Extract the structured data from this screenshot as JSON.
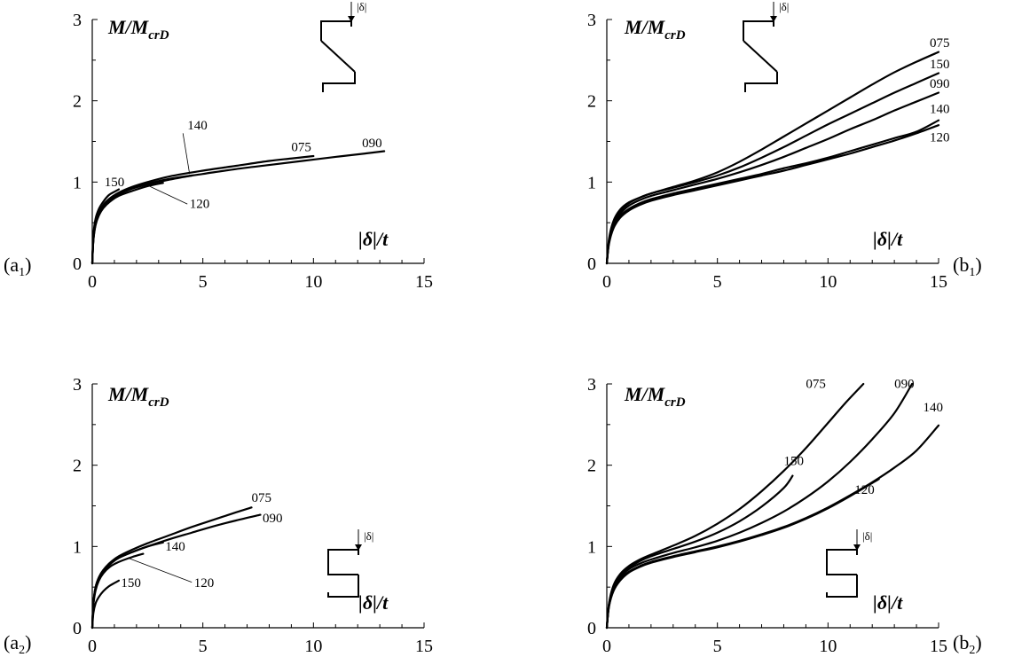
{
  "chart_data": [
    {
      "type": "line",
      "panel": "a1",
      "panel_label": {
        "main": "(a",
        "sub": "1",
        "close": ")"
      },
      "ylabel": {
        "main": "M/M",
        "sub": "crD"
      },
      "xlabel": "|δ|/t",
      "section_icon": "z-section-icon",
      "delta_label": "|δ|",
      "xlim": [
        0,
        15
      ],
      "ylim": [
        0,
        3
      ],
      "xticks": [
        "0",
        "5",
        "10",
        "15"
      ],
      "yticks": [
        "0",
        "1",
        "2",
        "3"
      ],
      "series": [
        {
          "name": "075",
          "x": [
            0,
            0.05,
            0.15,
            0.3,
            0.5,
            0.8,
            1.2,
            1.8,
            2.5,
            3.5,
            5,
            6.5,
            8,
            9,
            10
          ],
          "y": [
            0,
            0.3,
            0.5,
            0.62,
            0.72,
            0.8,
            0.87,
            0.94,
            1.0,
            1.07,
            1.14,
            1.2,
            1.26,
            1.29,
            1.32
          ]
        },
        {
          "name": "090",
          "x": [
            0,
            0.05,
            0.15,
            0.3,
            0.5,
            0.8,
            1.2,
            1.8,
            2.5,
            3.5,
            5,
            6.5,
            8,
            9.5,
            11,
            12.3,
            13.2
          ],
          "y": [
            0,
            0.29,
            0.48,
            0.6,
            0.7,
            0.78,
            0.85,
            0.92,
            0.98,
            1.04,
            1.1,
            1.16,
            1.21,
            1.26,
            1.31,
            1.35,
            1.38
          ]
        },
        {
          "name": "140",
          "x": [
            0,
            0.05,
            0.15,
            0.3,
            0.5,
            0.8,
            1.2,
            1.8,
            2.5,
            3.5,
            4.5
          ],
          "y": [
            0,
            0.3,
            0.5,
            0.62,
            0.71,
            0.79,
            0.86,
            0.92,
            0.97,
            1.03,
            1.08
          ]
        },
        {
          "name": "120",
          "x": [
            0,
            0.05,
            0.15,
            0.3,
            0.5,
            0.8,
            1.2,
            1.8,
            2.5,
            3.2
          ],
          "y": [
            0,
            0.28,
            0.47,
            0.59,
            0.68,
            0.76,
            0.83,
            0.89,
            0.95,
            0.99
          ]
        },
        {
          "name": "150",
          "x": [
            0,
            0.05,
            0.15,
            0.3,
            0.5,
            0.75,
            1.0,
            1.2
          ],
          "y": [
            0,
            0.35,
            0.55,
            0.67,
            0.76,
            0.84,
            0.88,
            0.91
          ]
        }
      ],
      "labels": [
        {
          "text": "150",
          "x": 0.55,
          "y": 0.95
        },
        {
          "text": "140",
          "x": 4.3,
          "y": 1.65
        },
        {
          "text": "120",
          "x": 4.4,
          "y": 0.68
        },
        {
          "text": "075",
          "x": 9.0,
          "y": 1.38
        },
        {
          "text": "090",
          "x": 12.2,
          "y": 1.43
        }
      ]
    },
    {
      "type": "line",
      "panel": "b1",
      "panel_label": {
        "main": "(b",
        "sub": "1",
        "close": ")"
      },
      "ylabel": {
        "main": "M/M",
        "sub": "crD"
      },
      "xlabel": "|δ|/t",
      "section_icon": "z-section-icon",
      "delta_label": "|δ|",
      "xlim": [
        0,
        15
      ],
      "ylim": [
        0,
        3
      ],
      "xticks": [
        "0",
        "5",
        "10",
        "15"
      ],
      "yticks": [
        "0",
        "1",
        "2",
        "3"
      ],
      "series": [
        {
          "name": "075",
          "x": [
            0,
            0.1,
            0.3,
            0.6,
            1,
            1.5,
            2,
            3,
            4,
            5,
            6,
            7,
            8,
            9,
            10,
            11,
            12,
            13,
            14,
            15
          ],
          "y": [
            0,
            0.28,
            0.5,
            0.64,
            0.74,
            0.81,
            0.86,
            0.94,
            1.02,
            1.12,
            1.25,
            1.4,
            1.56,
            1.72,
            1.88,
            2.04,
            2.2,
            2.35,
            2.48,
            2.6
          ]
        },
        {
          "name": "150",
          "x": [
            0,
            0.1,
            0.3,
            0.6,
            1,
            1.5,
            2,
            3,
            4,
            5,
            6,
            7,
            8,
            9,
            10,
            11,
            12,
            13,
            14,
            15
          ],
          "y": [
            0,
            0.3,
            0.52,
            0.66,
            0.75,
            0.81,
            0.86,
            0.93,
            1.0,
            1.08,
            1.18,
            1.3,
            1.43,
            1.57,
            1.71,
            1.84,
            1.97,
            2.1,
            2.22,
            2.34
          ]
        },
        {
          "name": "090",
          "x": [
            0,
            0.1,
            0.3,
            0.6,
            1,
            1.5,
            2,
            3,
            4,
            5,
            6,
            7,
            8,
            9,
            10,
            11,
            12,
            13,
            14,
            15
          ],
          "y": [
            0,
            0.26,
            0.47,
            0.61,
            0.71,
            0.78,
            0.83,
            0.9,
            0.97,
            1.04,
            1.12,
            1.21,
            1.31,
            1.42,
            1.53,
            1.65,
            1.76,
            1.88,
            1.99,
            2.1
          ]
        },
        {
          "name": "140",
          "x": [
            0,
            0.1,
            0.3,
            0.6,
            1,
            1.5,
            2,
            3,
            4,
            5,
            6,
            7,
            8,
            9,
            10,
            11,
            12,
            13,
            14,
            15
          ],
          "y": [
            0,
            0.26,
            0.45,
            0.58,
            0.67,
            0.74,
            0.79,
            0.86,
            0.92,
            0.98,
            1.04,
            1.1,
            1.17,
            1.23,
            1.3,
            1.38,
            1.46,
            1.54,
            1.62,
            1.76
          ]
        },
        {
          "name": "120",
          "x": [
            0,
            0.1,
            0.3,
            0.6,
            1,
            1.5,
            2,
            3,
            4,
            5,
            6,
            7,
            8,
            9,
            10,
            11,
            12,
            13,
            14,
            15
          ],
          "y": [
            0,
            0.24,
            0.43,
            0.56,
            0.65,
            0.72,
            0.77,
            0.84,
            0.9,
            0.96,
            1.02,
            1.08,
            1.14,
            1.21,
            1.28,
            1.35,
            1.43,
            1.51,
            1.6,
            1.7
          ]
        }
      ],
      "labels": [
        {
          "text": "075",
          "x": 14.6,
          "y": 2.66
        },
        {
          "text": "150",
          "x": 14.6,
          "y": 2.4
        },
        {
          "text": "090",
          "x": 14.6,
          "y": 2.16
        },
        {
          "text": "140",
          "x": 14.6,
          "y": 1.85
        },
        {
          "text": "120",
          "x": 14.6,
          "y": 1.5
        }
      ]
    },
    {
      "type": "line",
      "panel": "a2",
      "panel_label": {
        "main": "(a",
        "sub": "2",
        "close": ")"
      },
      "ylabel": {
        "main": "M/M",
        "sub": "crD"
      },
      "xlabel": "|δ|/t",
      "section_icon": "c-section-icon",
      "delta_label": "|δ|",
      "xlim": [
        0,
        15
      ],
      "ylim": [
        0,
        3
      ],
      "xticks": [
        "0",
        "5",
        "10",
        "15"
      ],
      "yticks": [
        "0",
        "1",
        "2",
        "3"
      ],
      "series": [
        {
          "name": "075",
          "x": [
            0,
            0.05,
            0.15,
            0.3,
            0.5,
            0.8,
            1.2,
            1.8,
            2.5,
            3.5,
            4.5,
            5.5,
            6.5,
            7.2
          ],
          "y": [
            0,
            0.3,
            0.5,
            0.62,
            0.71,
            0.8,
            0.88,
            0.96,
            1.04,
            1.14,
            1.24,
            1.33,
            1.42,
            1.48
          ]
        },
        {
          "name": "090",
          "x": [
            0,
            0.05,
            0.15,
            0.3,
            0.5,
            0.8,
            1.2,
            1.8,
            2.5,
            3.5,
            4.5,
            5.5,
            6.5,
            7.6
          ],
          "y": [
            0,
            0.29,
            0.48,
            0.6,
            0.69,
            0.78,
            0.86,
            0.93,
            1.0,
            1.09,
            1.17,
            1.25,
            1.32,
            1.39
          ]
        },
        {
          "name": "140",
          "x": [
            0,
            0.05,
            0.15,
            0.3,
            0.5,
            0.8,
            1.2,
            1.8,
            2.5,
            3.2
          ],
          "y": [
            0,
            0.3,
            0.5,
            0.62,
            0.71,
            0.79,
            0.86,
            0.93,
            1.0,
            1.05
          ]
        },
        {
          "name": "120",
          "x": [
            0,
            0.05,
            0.15,
            0.3,
            0.5,
            0.8,
            1.2,
            1.8,
            2.3
          ],
          "y": [
            0,
            0.28,
            0.46,
            0.58,
            0.67,
            0.75,
            0.81,
            0.87,
            0.91
          ]
        },
        {
          "name": "150",
          "x": [
            0,
            0.05,
            0.15,
            0.3,
            0.5,
            0.75,
            1.0,
            1.2
          ],
          "y": [
            0,
            0.18,
            0.3,
            0.38,
            0.45,
            0.51,
            0.55,
            0.58
          ]
        }
      ],
      "labels": [
        {
          "text": "075",
          "x": 7.2,
          "y": 1.55
        },
        {
          "text": "090",
          "x": 7.7,
          "y": 1.3
        },
        {
          "text": "140",
          "x": 3.3,
          "y": 0.95
        },
        {
          "text": "120",
          "x": 4.6,
          "y": 0.5
        },
        {
          "text": "150",
          "x": 1.3,
          "y": 0.5
        }
      ]
    },
    {
      "type": "line",
      "panel": "b2",
      "panel_label": {
        "main": "(b",
        "sub": "2",
        "close": ")"
      },
      "ylabel": {
        "main": "M/M",
        "sub": "crD"
      },
      "xlabel": "|δ|/t",
      "section_icon": "c-section-icon",
      "delta_label": "|δ|",
      "xlim": [
        0,
        15
      ],
      "ylim": [
        0,
        3
      ],
      "xticks": [
        "0",
        "5",
        "10",
        "15"
      ],
      "yticks": [
        "0",
        "1",
        "2",
        "3"
      ],
      "series": [
        {
          "name": "075",
          "x": [
            0,
            0.1,
            0.3,
            0.6,
            1,
            1.5,
            2,
            3,
            4,
            5,
            6,
            7,
            8,
            9,
            10,
            10.8,
            11.6
          ],
          "y": [
            0,
            0.3,
            0.52,
            0.66,
            0.76,
            0.84,
            0.9,
            1.01,
            1.13,
            1.28,
            1.46,
            1.68,
            1.93,
            2.21,
            2.52,
            2.77,
            3.0
          ]
        },
        {
          "name": "150",
          "x": [
            0,
            0.1,
            0.3,
            0.6,
            1,
            1.5,
            2,
            3,
            4,
            5,
            6,
            7,
            8,
            8.4
          ],
          "y": [
            0,
            0.29,
            0.5,
            0.64,
            0.74,
            0.82,
            0.88,
            0.97,
            1.06,
            1.17,
            1.31,
            1.49,
            1.72,
            1.87
          ]
        },
        {
          "name": "090",
          "x": [
            0,
            0.1,
            0.3,
            0.6,
            1,
            1.5,
            2,
            3,
            4,
            5,
            6,
            7,
            8,
            9,
            10,
            11,
            12,
            13,
            13.8
          ],
          "y": [
            0,
            0.28,
            0.48,
            0.62,
            0.72,
            0.79,
            0.84,
            0.92,
            0.99,
            1.07,
            1.17,
            1.29,
            1.43,
            1.6,
            1.8,
            2.04,
            2.32,
            2.64,
            3.0
          ]
        },
        {
          "name": "140",
          "x": [
            0,
            0.1,
            0.3,
            0.6,
            1,
            1.5,
            2,
            3,
            4,
            5,
            6,
            7,
            8,
            9,
            10,
            11,
            12,
            13,
            14,
            15
          ],
          "y": [
            0,
            0.27,
            0.46,
            0.6,
            0.69,
            0.76,
            0.81,
            0.88,
            0.94,
            1.0,
            1.07,
            1.15,
            1.24,
            1.35,
            1.48,
            1.63,
            1.79,
            1.97,
            2.18,
            2.49
          ]
        },
        {
          "name": "120",
          "x": [
            0,
            0.1,
            0.3,
            0.6,
            1,
            1.5,
            2,
            3,
            4,
            5,
            6,
            7,
            8,
            9,
            10,
            11,
            12.3
          ],
          "y": [
            0,
            0.26,
            0.45,
            0.58,
            0.68,
            0.75,
            0.8,
            0.87,
            0.93,
            0.99,
            1.06,
            1.14,
            1.23,
            1.34,
            1.47,
            1.62,
            1.83
          ]
        }
      ],
      "labels": [
        {
          "text": "075",
          "x": 9.0,
          "y": 2.95
        },
        {
          "text": "090",
          "x": 13.0,
          "y": 2.95
        },
        {
          "text": "150",
          "x": 8.0,
          "y": 2.0
        },
        {
          "text": "140",
          "x": 14.3,
          "y": 2.66
        },
        {
          "text": "120",
          "x": 11.2,
          "y": 1.65
        }
      ]
    }
  ]
}
